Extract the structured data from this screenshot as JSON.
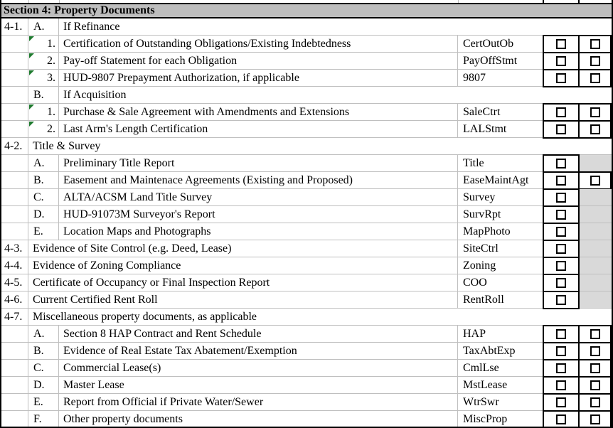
{
  "section": {
    "title": "Section 4: Property Documents"
  },
  "colors": {
    "header_bg": "#bebebe",
    "shaded_cell": "#d9d9d9",
    "grid_line": "#bfbfbf",
    "flag_green": "#1e7a2e"
  },
  "checkbox_state": "unchecked",
  "rows": [
    {
      "num": "4-1.",
      "sub": "A.",
      "sub_align": "left",
      "flag": false,
      "desc": "If Refinance",
      "code": "",
      "cb1": "none",
      "cb2": "none"
    },
    {
      "num": "",
      "sub": "1.",
      "sub_align": "right",
      "flag": true,
      "desc": "Certification of Outstanding Obligations/Existing Indebtedness",
      "code": "CertOutOb",
      "cb1": "box",
      "cb2": "box"
    },
    {
      "num": "",
      "sub": "2.",
      "sub_align": "right",
      "flag": true,
      "desc": "Pay-off Statement for each Obligation",
      "code": "PayOffStmt",
      "cb1": "box",
      "cb2": "box"
    },
    {
      "num": "",
      "sub": "3.",
      "sub_align": "right",
      "flag": true,
      "desc": "HUD-9807 Prepayment Authorization, if applicable",
      "code": "9807",
      "cb1": "box",
      "cb2": "box"
    },
    {
      "num": "",
      "sub": "B.",
      "sub_align": "left",
      "flag": false,
      "desc": "If Acquisition",
      "code": "",
      "cb1": "none",
      "cb2": "none"
    },
    {
      "num": "",
      "sub": "1.",
      "sub_align": "right",
      "flag": true,
      "desc": "Purchase & Sale Agreement with Amendments and Extensions",
      "code": "SaleCtrt",
      "cb1": "box",
      "cb2": "box"
    },
    {
      "num": "",
      "sub": "2.",
      "sub_align": "right",
      "flag": true,
      "desc": "Last Arm's Length Certification",
      "code": "LALStmt",
      "cb1": "box",
      "cb2": "box"
    },
    {
      "num": "4-2.",
      "sub": null,
      "sub_align": "left",
      "flag": false,
      "desc": "Title & Survey",
      "code": "",
      "cb1": "none",
      "cb2": "none"
    },
    {
      "num": "",
      "sub": "A.",
      "sub_align": "left",
      "flag": false,
      "desc": "Preliminary Title Report",
      "code": "Title",
      "cb1": "box",
      "cb2": "shaded"
    },
    {
      "num": "",
      "sub": "B.",
      "sub_align": "left",
      "flag": false,
      "desc": "Easement and Maintenace Agreements (Existing and Proposed)",
      "code": "EaseMaintAgt",
      "cb1": "box",
      "cb2": "box"
    },
    {
      "num": "",
      "sub": "C.",
      "sub_align": "left",
      "flag": false,
      "desc": "ALTA/ACSM Land Title Survey",
      "code": "Survey",
      "cb1": "box",
      "cb2": "shaded"
    },
    {
      "num": "",
      "sub": "D.",
      "sub_align": "left",
      "flag": false,
      "desc": "HUD-91073M Surveyor's Report",
      "code": "SurvRpt",
      "cb1": "box",
      "cb2": "shaded"
    },
    {
      "num": "",
      "sub": "E.",
      "sub_align": "left",
      "flag": false,
      "desc": "Location Maps and Photographs",
      "code": "MapPhoto",
      "cb1": "box",
      "cb2": "shaded"
    },
    {
      "num": "4-3.",
      "sub": null,
      "sub_align": "left",
      "flag": false,
      "desc": "Evidence of Site Control (e.g. Deed, Lease)",
      "code": "SiteCtrl",
      "cb1": "box",
      "cb2": "shaded"
    },
    {
      "num": "4-4.",
      "sub": null,
      "sub_align": "left",
      "flag": false,
      "desc": "Evidence of Zoning Compliance",
      "code": "Zoning",
      "cb1": "box",
      "cb2": "shaded"
    },
    {
      "num": "4-5.",
      "sub": null,
      "sub_align": "left",
      "flag": false,
      "desc": "Certificate of Occupancy or Final Inspection Report",
      "code": "COO",
      "cb1": "box",
      "cb2": "shaded"
    },
    {
      "num": "4-6.",
      "sub": null,
      "sub_align": "left",
      "flag": false,
      "desc": "Current Certified Rent Roll",
      "code": "RentRoll",
      "cb1": "box",
      "cb2": "shaded"
    },
    {
      "num": "4-7.",
      "sub": null,
      "sub_align": "left",
      "flag": false,
      "desc": "Miscellaneous property documents, as applicable",
      "code": "",
      "cb1": "none",
      "cb2": "none"
    },
    {
      "num": "",
      "sub": "A.",
      "sub_align": "left",
      "flag": false,
      "desc": "Section 8 HAP Contract and Rent Schedule",
      "code": "HAP",
      "cb1": "box",
      "cb2": "box"
    },
    {
      "num": "",
      "sub": "B.",
      "sub_align": "left",
      "flag": false,
      "desc": "Evidence of Real Estate Tax Abatement/Exemption",
      "code": "TaxAbtExp",
      "cb1": "box",
      "cb2": "box"
    },
    {
      "num": "",
      "sub": "C.",
      "sub_align": "left",
      "flag": false,
      "desc": "Commercial Lease(s)",
      "code": "CmlLse",
      "cb1": "box",
      "cb2": "box"
    },
    {
      "num": "",
      "sub": "D.",
      "sub_align": "left",
      "flag": false,
      "desc": "Master Lease",
      "code": "MstLease",
      "cb1": "box",
      "cb2": "box"
    },
    {
      "num": "",
      "sub": "E.",
      "sub_align": "left",
      "flag": false,
      "desc": "Report from Official if Private Water/Sewer",
      "code": "WtrSwr",
      "cb1": "box",
      "cb2": "box"
    },
    {
      "num": "",
      "sub": "F.",
      "sub_align": "left",
      "flag": false,
      "desc": "Other property documents",
      "code": "MiscProp",
      "cb1": "box",
      "cb2": "box"
    }
  ]
}
